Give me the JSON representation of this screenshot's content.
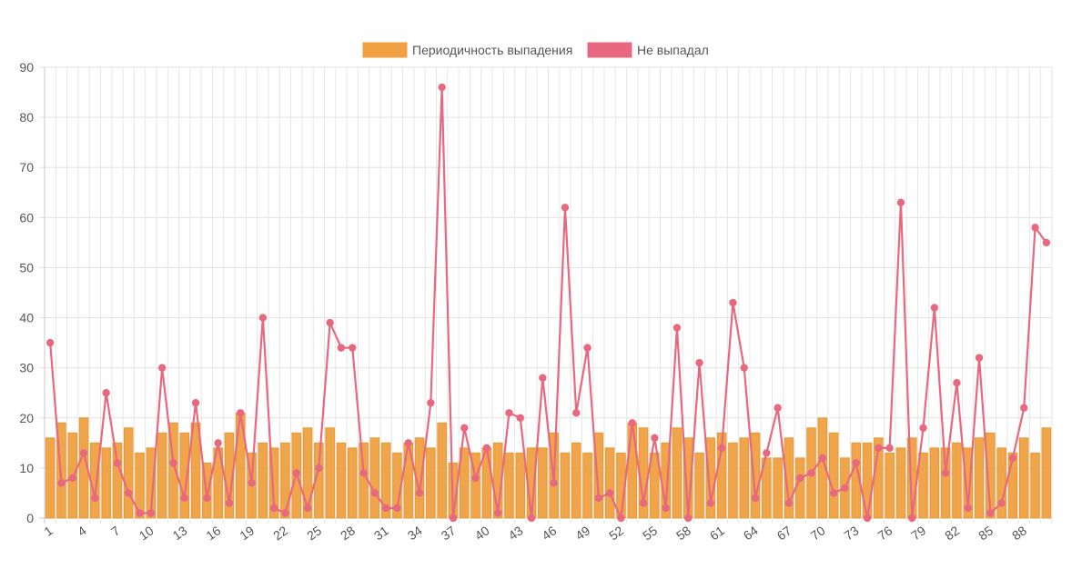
{
  "chart_data": {
    "type": "bar+line",
    "categories": [
      1,
      2,
      3,
      4,
      5,
      6,
      7,
      8,
      9,
      10,
      11,
      12,
      13,
      14,
      15,
      16,
      17,
      18,
      19,
      20,
      21,
      22,
      23,
      24,
      25,
      26,
      27,
      28,
      29,
      30,
      31,
      32,
      33,
      34,
      35,
      36,
      37,
      38,
      39,
      40,
      41,
      42,
      43,
      44,
      45,
      46,
      47,
      48,
      49,
      50,
      51,
      52,
      53,
      54,
      55,
      56,
      57,
      58,
      59,
      60,
      61,
      62,
      63,
      64,
      65,
      66,
      67,
      68,
      69,
      70,
      71,
      72,
      73,
      74,
      75,
      76,
      77,
      78,
      79,
      80,
      81,
      82,
      83,
      84,
      85,
      86,
      87,
      88,
      89,
      90
    ],
    "ylim": [
      0,
      90
    ],
    "yticks": [
      0,
      10,
      20,
      30,
      40,
      50,
      60,
      70,
      80,
      90
    ],
    "xtick_every": 3,
    "grid": true,
    "legend_position": "top-center",
    "series": [
      {
        "name": "Периодичность выпадения",
        "kind": "bar",
        "color": "#f0a040",
        "values": [
          16,
          19,
          17,
          20,
          15,
          14,
          15,
          18,
          13,
          14,
          17,
          19,
          17,
          19,
          11,
          14,
          17,
          21,
          13,
          15,
          14,
          15,
          17,
          18,
          15,
          18,
          15,
          14,
          15,
          16,
          15,
          13,
          15,
          16,
          14,
          19,
          11,
          14,
          13,
          14,
          15,
          13,
          13,
          14,
          14,
          17,
          13,
          15,
          13,
          17,
          14,
          13,
          19,
          18,
          13,
          15,
          18,
          16,
          13,
          16,
          17,
          15,
          16,
          17,
          12,
          12,
          16,
          12,
          18,
          20,
          17,
          12,
          15,
          15,
          16,
          13,
          14,
          16,
          13,
          14,
          14,
          15,
          14,
          16,
          17,
          14,
          13,
          16,
          13,
          18
        ]
      },
      {
        "name": "Не выпадал",
        "kind": "line",
        "color": "#e8687f",
        "values": [
          35,
          7,
          8,
          13,
          4,
          25,
          11,
          5,
          1,
          1,
          30,
          11,
          4,
          23,
          4,
          15,
          3,
          21,
          7,
          40,
          2,
          1,
          9,
          2,
          10,
          39,
          34,
          34,
          9,
          5,
          2,
          2,
          15,
          5,
          23,
          86,
          0,
          18,
          8,
          14,
          1,
          21,
          20,
          0,
          28,
          7,
          62,
          21,
          34,
          4,
          5,
          0,
          19,
          3,
          16,
          2,
          38,
          0,
          31,
          3,
          14,
          43,
          30,
          4,
          13,
          22,
          3,
          8,
          9,
          12,
          5,
          6,
          11,
          0,
          14,
          14,
          63,
          0,
          18,
          42,
          9,
          27,
          2,
          32,
          1,
          3,
          12,
          22,
          58,
          55
        ]
      }
    ]
  }
}
